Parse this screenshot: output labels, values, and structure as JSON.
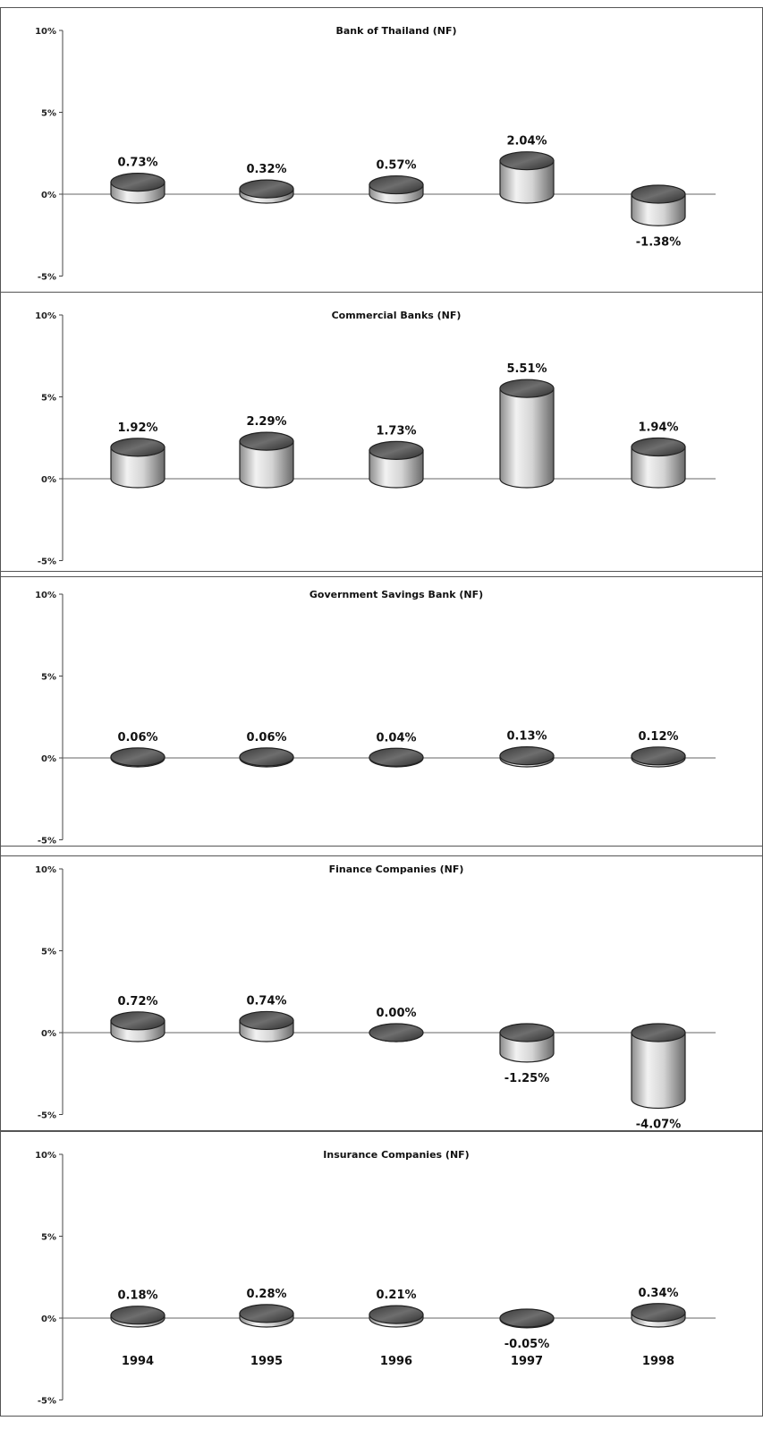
{
  "chart_data": [
    {
      "type": "bar",
      "title": "Bank of Thailand (NF)",
      "categories": [
        "1994",
        "1995",
        "1996",
        "1997",
        "1998"
      ],
      "values": [
        0.73,
        0.32,
        0.57,
        2.04,
        -1.38
      ],
      "data_labels": [
        "0.73%",
        "0.32%",
        "0.57%",
        "2.04%",
        "-1.38%"
      ],
      "ylim": [
        -5,
        10
      ],
      "yticks": [
        "-5%",
        "0%",
        "5%",
        "10%"
      ],
      "show_category_labels": false
    },
    {
      "type": "bar",
      "title": "Commercial Banks (NF)",
      "categories": [
        "1994",
        "1995",
        "1996",
        "1997",
        "1998"
      ],
      "values": [
        1.92,
        2.29,
        1.73,
        5.51,
        1.94
      ],
      "data_labels": [
        "1.92%",
        "2.29%",
        "1.73%",
        "5.51%",
        "1.94%"
      ],
      "ylim": [
        -5,
        10
      ],
      "yticks": [
        "-5%",
        "0%",
        "5%",
        "10%"
      ],
      "show_category_labels": false
    },
    {
      "type": "bar",
      "title": "Government Savings Bank (NF)",
      "categories": [
        "1994",
        "1995",
        "1996",
        "1997",
        "1998"
      ],
      "values": [
        0.06,
        0.06,
        0.04,
        0.13,
        0.12
      ],
      "data_labels": [
        "0.06%",
        "0.06%",
        "0.04%",
        "0.13%",
        "0.12%"
      ],
      "ylim": [
        -5,
        10
      ],
      "yticks": [
        "-5%",
        "0%",
        "5%",
        "10%"
      ],
      "show_category_labels": false
    },
    {
      "type": "bar",
      "title": "Finance  Companies (NF)",
      "categories": [
        "1994",
        "1995",
        "1996",
        "1997",
        "1998"
      ],
      "values": [
        0.72,
        0.74,
        0.0,
        -1.25,
        -4.07
      ],
      "data_labels": [
        "0.72%",
        "0.74%",
        "0.00%",
        "-1.25%",
        "-4.07%"
      ],
      "ylim": [
        -5,
        10
      ],
      "yticks": [
        "-5%",
        "0%",
        "5%",
        "10%"
      ],
      "show_category_labels": false
    },
    {
      "type": "bar",
      "title": "Insurance Companies (NF)",
      "categories": [
        "1994",
        "1995",
        "1996",
        "1997",
        "1998"
      ],
      "values": [
        0.18,
        0.28,
        0.21,
        -0.05,
        0.34
      ],
      "data_labels": [
        "0.18%",
        "0.28%",
        "0.21%",
        "-0.05%",
        "0.34%"
      ],
      "ylim": [
        -5,
        10
      ],
      "yticks": [
        "-5%",
        "0%",
        "5%",
        "10%"
      ],
      "show_category_labels": true
    }
  ]
}
